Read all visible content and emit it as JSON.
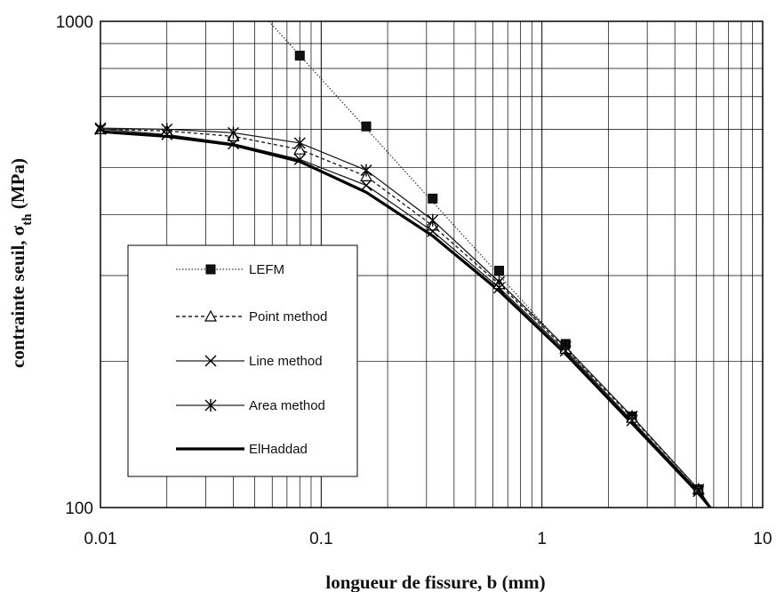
{
  "chart_data": {
    "type": "line",
    "x_scale": "log",
    "y_scale": "log",
    "xlim": [
      0.01,
      10
    ],
    "ylim": [
      100,
      1000
    ],
    "grid": true,
    "legend_position": "center-left",
    "xlabel": "longueur de fissure, b (mm)",
    "ylabel": {
      "main": "contrainte seuil, σ",
      "subscript": "th",
      "unit": " (MPa)"
    },
    "x_ticks": [
      0.01,
      0.1,
      1,
      10
    ],
    "x_tick_labels": [
      "0.01",
      "0.1",
      "1",
      "10"
    ],
    "y_ticks": [
      100,
      1000
    ],
    "y_tick_labels": [
      "100",
      "1000"
    ],
    "series": [
      {
        "name": "LEFM",
        "line_style": "dotted",
        "marker": "filled-square",
        "line_x": [
          0.058,
          6.0
        ],
        "line_y": [
          1000,
          98
        ],
        "points": [
          [
            0.08,
            850
          ],
          [
            0.16,
            608
          ],
          [
            0.32,
            432
          ],
          [
            0.64,
            307
          ],
          [
            1.28,
            217
          ],
          [
            2.56,
            154
          ],
          [
            5.12,
            109
          ]
        ]
      },
      {
        "name": "Point method",
        "line_style": "dashed",
        "marker": "open-triangle",
        "x": [
          0.01,
          0.02,
          0.04,
          0.08,
          0.16,
          0.32,
          0.64,
          1.28,
          2.56,
          5.12,
          6.0
        ],
        "y": [
          600,
          595,
          580,
          545,
          480,
          380,
          288,
          212,
          153,
          109,
          98
        ]
      },
      {
        "name": "Line method",
        "line_style": "solid",
        "marker": "x",
        "x": [
          0.01,
          0.02,
          0.04,
          0.08,
          0.16,
          0.32,
          0.64,
          1.28,
          2.56,
          5.12,
          6.0
        ],
        "y": [
          600,
          585,
          560,
          520,
          460,
          370,
          283,
          210,
          151,
          108,
          98
        ]
      },
      {
        "name": "Area method",
        "line_style": "solid",
        "marker": "asterisk",
        "x": [
          0.01,
          0.02,
          0.04,
          0.08,
          0.16,
          0.32,
          0.64,
          1.28,
          2.56,
          5.12,
          6.0
        ],
        "y": [
          603,
          600,
          590,
          562,
          494,
          390,
          291,
          214,
          154,
          109,
          98
        ]
      },
      {
        "name": "ElHaddad",
        "line_style": "solid-thick",
        "marker": "none",
        "x": [
          0.01,
          0.02,
          0.04,
          0.08,
          0.16,
          0.32,
          0.64,
          1.28,
          2.56,
          5.12,
          6.0
        ],
        "y": [
          593,
          580,
          557,
          515,
          445,
          362,
          279,
          207,
          149,
          107,
          98
        ]
      }
    ]
  }
}
